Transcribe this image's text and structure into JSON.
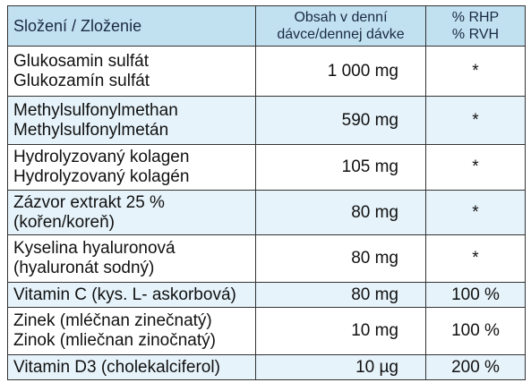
{
  "table": {
    "header": [
      [
        "Složení / Zloženie"
      ],
      [
        "Obsah v denní",
        "dávce/dennej dávke"
      ],
      [
        "% RHP",
        "% RVH"
      ]
    ],
    "rows": [
      [
        [
          "Glukosamin sulfát",
          "Glukozamín sulfát"
        ],
        "1 000 mg",
        "*"
      ],
      [
        [
          "Methylsulfonylmethan",
          "Methylsulfonylmetán"
        ],
        "590 mg",
        "*"
      ],
      [
        [
          "Hydrolyzovaný kolagen",
          "Hydrolyzovaný kolagén"
        ],
        "105 mg",
        "*"
      ],
      [
        [
          "Zázvor extrakt 25 %",
          "(kořen/koreň)"
        ],
        "80 mg",
        "*"
      ],
      [
        [
          "Kyselina hyaluronová",
          "(hyaluronát sodný)"
        ],
        "80 mg",
        "*"
      ],
      [
        [
          "Vitamin C (kys. L- askorbová)"
        ],
        "80 mg",
        "100 %"
      ],
      [
        [
          "Zinek (mléčnan zinečnatý)",
          "Zinok (mliečnan zinočnatý)"
        ],
        "10 mg",
        "100 %"
      ],
      [
        [
          "Vitamin D3 (cholekalciferol)"
        ],
        "10 µg",
        "200 %"
      ]
    ]
  }
}
